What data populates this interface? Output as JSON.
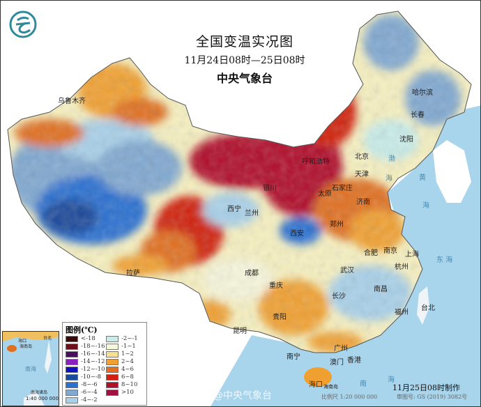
{
  "header": {
    "title": "全国变温实况图",
    "period": "11月24日08时—25日08时",
    "agency": "中央气象台"
  },
  "logo": {
    "icon": "cma-logo-icon",
    "color": "#2e8a9a"
  },
  "cities": {
    "urumqi": "乌鲁木齐",
    "harbin": "哈尔滨",
    "changchun": "长春",
    "shenyang": "沈阳",
    "beijing": "北京",
    "tianjin": "天津",
    "hohhot": "呼和浩特",
    "shijiazhuang": "石家庄",
    "taiyuan": "太原",
    "jinan": "济南",
    "yinchuan": "银川",
    "xining": "西宁",
    "lanzhou": "兰州",
    "zhengzhou": "郑州",
    "xian": "西安",
    "hefei": "合肥",
    "nanjing": "南京",
    "shanghai": "上海",
    "hangzhou": "杭州",
    "wuhan": "武汉",
    "chengdu": "成都",
    "lhasa": "拉萨",
    "chongqing": "重庆",
    "changsha": "长沙",
    "nanchang": "南昌",
    "fuzhou": "福州",
    "taipei": "台北",
    "guiyang": "贵阳",
    "kunming": "昆明",
    "nanning": "南宁",
    "guangzhou": "广州",
    "hongkong": "香港",
    "macau": "澳门",
    "haikou": "海口",
    "hainan_island": "海南岛"
  },
  "seas": {
    "bohai": [
      "渤",
      "海"
    ],
    "yellow": [
      "黄",
      "海"
    ],
    "east": [
      "东",
      "海"
    ],
    "south": [
      "南",
      "海"
    ]
  },
  "legend": {
    "title": "图例(℃)",
    "items": [
      {
        "label": "<-18",
        "color": "#3a0a0a"
      },
      {
        "label": "-18~-16",
        "color": "#6b0f1a"
      },
      {
        "label": "-16~-14",
        "color": "#4a1060"
      },
      {
        "label": "-14~-12",
        "color": "#8a20c0"
      },
      {
        "label": "-12~-10",
        "color": "#1010c0"
      },
      {
        "label": "-10~-8",
        "color": "#1a4a9a"
      },
      {
        "label": "-8~-6",
        "color": "#2a70d0"
      },
      {
        "label": "-6~-4",
        "color": "#80a8d0"
      },
      {
        "label": "-4~-2",
        "color": "#a8d0e8"
      },
      {
        "label": "-2~-1",
        "color": "#c8ece8"
      },
      {
        "label": "-1~1",
        "color": "#f6f6dc"
      },
      {
        "label": "1~2",
        "color": "#f8e090"
      },
      {
        "label": "2~4",
        "color": "#f0a030"
      },
      {
        "label": "4~6",
        "color": "#e07020"
      },
      {
        "label": "6~8",
        "color": "#d02010"
      },
      {
        "label": "8~10",
        "color": "#b0102a"
      },
      {
        "label": ">10",
        "color": "#a01040"
      }
    ]
  },
  "inset": {
    "sea": "南海",
    "title": "南海诸岛",
    "scale": "1:40 000 000",
    "haikou": "海口",
    "hainan": "海南岛",
    "taipei": "台北"
  },
  "footer": {
    "issued": "11月25日08时制作",
    "scale": "比例尺 1:20 000 000",
    "review": "审图号: GS (2019) 3082号",
    "watermark": "@中央气象台"
  }
}
